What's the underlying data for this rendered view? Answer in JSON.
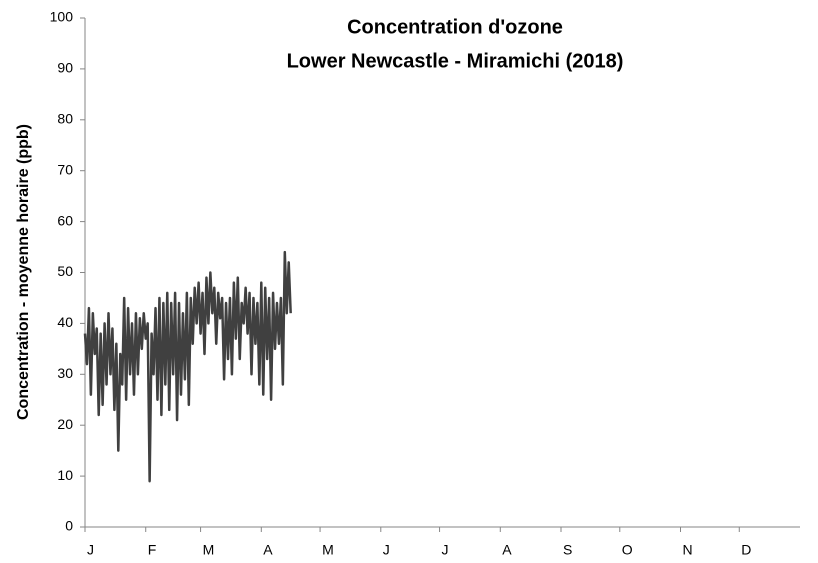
{
  "chart_data": {
    "type": "line",
    "title": [
      "Concentration d'ozone",
      "Lower Newcastle - Miramichi (2018)"
    ],
    "y_label": "Concentration - moyenne horaire (ppb)",
    "x": [
      0,
      1,
      2,
      3,
      4,
      5,
      6,
      7,
      8,
      9,
      10,
      11,
      12,
      13,
      14,
      15,
      16,
      17,
      18,
      19,
      20,
      21,
      22,
      23,
      24,
      25,
      26,
      27,
      28,
      29,
      30,
      31,
      32,
      33,
      34,
      35,
      36,
      37,
      38,
      39,
      40,
      41,
      42,
      43,
      44,
      45,
      46,
      47,
      48,
      49,
      50,
      51,
      52,
      53,
      54,
      55,
      56,
      57,
      58,
      59,
      60,
      61,
      62,
      63,
      64,
      65,
      66,
      67,
      68,
      69,
      70,
      71,
      72,
      73,
      74,
      75,
      76,
      77,
      78,
      79,
      80,
      81,
      82,
      83,
      84,
      85,
      86,
      87,
      88,
      89,
      90,
      91,
      92,
      93,
      94,
      95,
      96,
      97,
      98,
      99,
      100,
      101,
      102,
      103,
      104,
      105
    ],
    "series": [
      {
        "color": "#404040",
        "values": [
          38,
          32,
          43,
          26,
          42,
          34,
          39,
          22,
          38,
          24,
          40,
          28,
          42,
          30,
          39,
          23,
          36,
          15,
          34,
          28,
          45,
          25,
          43,
          30,
          40,
          26,
          42,
          30,
          41,
          35,
          42,
          37,
          40,
          9,
          38,
          30,
          43,
          25,
          45,
          22,
          44,
          28,
          46,
          23,
          44,
          30,
          46,
          21,
          44,
          26,
          42,
          29,
          46,
          24,
          45,
          36,
          47,
          40,
          48,
          38,
          46,
          34,
          49,
          40,
          50,
          42,
          47,
          36,
          46,
          41,
          45,
          29,
          44,
          33,
          45,
          30,
          48,
          37,
          49,
          33,
          44,
          40,
          47,
          38,
          46,
          30,
          45,
          36,
          44,
          28,
          48,
          26,
          47,
          33,
          45,
          25,
          46,
          35,
          44,
          36,
          45,
          28,
          54,
          42,
          52,
          42
        ]
      }
    ],
    "xlim": [
      0,
      365
    ],
    "xticks": [
      {
        "value": 0,
        "label": "J"
      },
      {
        "value": 31,
        "label": "F"
      },
      {
        "value": 59,
        "label": "M"
      },
      {
        "value": 90,
        "label": "A"
      },
      {
        "value": 120,
        "label": "M"
      },
      {
        "value": 151,
        "label": "J"
      },
      {
        "value": 181,
        "label": "J"
      },
      {
        "value": 212,
        "label": "A"
      },
      {
        "value": 243,
        "label": "S"
      },
      {
        "value": 273,
        "label": "O"
      },
      {
        "value": 304,
        "label": "N"
      },
      {
        "value": 334,
        "label": "D"
      }
    ],
    "ylim": [
      0,
      100
    ],
    "yticks": [
      0,
      10,
      20,
      30,
      40,
      50,
      60,
      70,
      80,
      90,
      100
    ]
  }
}
